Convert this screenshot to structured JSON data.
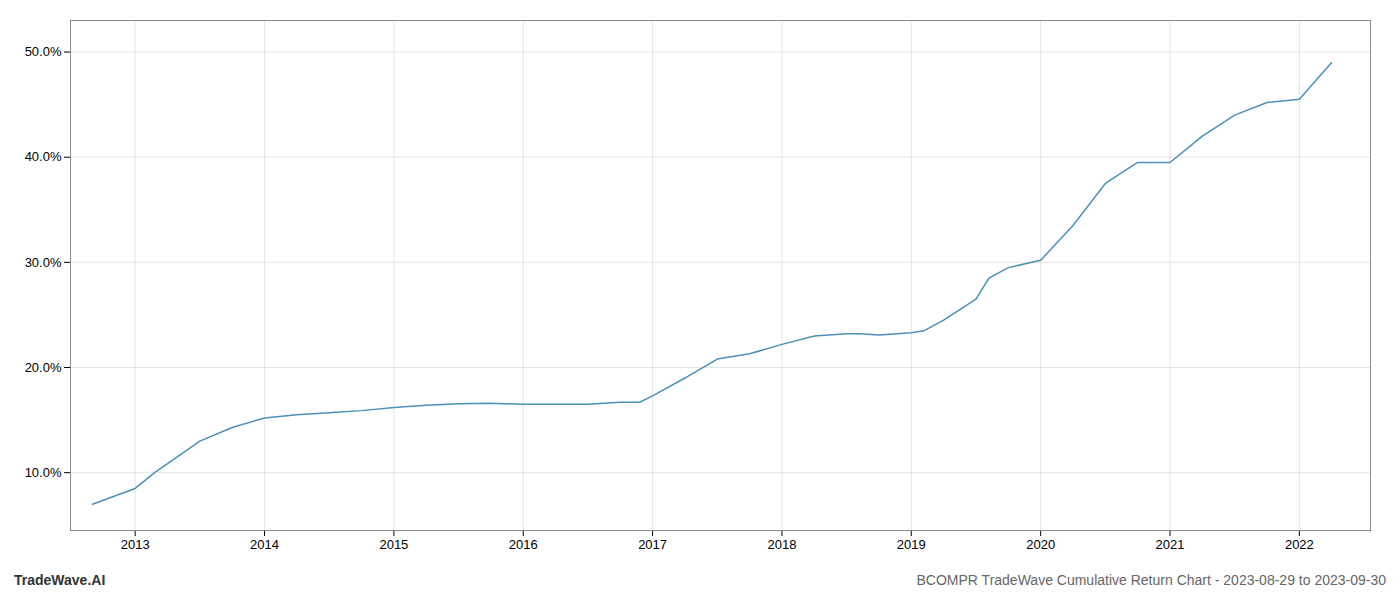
{
  "chart_data": {
    "type": "line",
    "title": "BCOMPR TradeWave Cumulative Return Chart - 2023-08-29 to 2023-09-30",
    "annotations": [
      "TradeWave.AI"
    ],
    "color": "#4a90b8",
    "grid": true,
    "x": [
      2012.67,
      2013.0,
      2013.15,
      2013.5,
      2013.75,
      2014.0,
      2014.25,
      2014.5,
      2014.75,
      2015.0,
      2015.25,
      2015.5,
      2015.75,
      2016.0,
      2016.1,
      2016.25,
      2016.5,
      2016.75,
      2016.9,
      2017.0,
      2017.25,
      2017.5,
      2017.75,
      2018.0,
      2018.25,
      2018.5,
      2018.6,
      2018.75,
      2019.0,
      2019.1,
      2019.25,
      2019.5,
      2019.6,
      2019.75,
      2020.0,
      2020.25,
      2020.5,
      2020.75,
      2021.0,
      2021.25,
      2021.5,
      2021.75,
      2022.0,
      2022.25
    ],
    "values": [
      7.0,
      8.5,
      10.0,
      13.0,
      14.3,
      15.2,
      15.5,
      15.7,
      15.9,
      16.2,
      16.4,
      16.55,
      16.6,
      16.5,
      16.5,
      16.5,
      16.5,
      16.7,
      16.7,
      17.3,
      19.0,
      20.8,
      21.3,
      22.2,
      23.0,
      23.2,
      23.2,
      23.1,
      23.3,
      23.5,
      24.5,
      26.5,
      28.5,
      29.5,
      30.2,
      33.5,
      37.5,
      39.5,
      39.5,
      42.0,
      44.0,
      45.2,
      45.5,
      49.0
    ],
    "xlim": [
      2012.5,
      2022.55
    ],
    "xticks": [
      2013,
      2014,
      2015,
      2016,
      2017,
      2018,
      2019,
      2020,
      2021,
      2022
    ],
    "ylim": [
      4.5,
      53
    ],
    "yticks": [
      {
        "value": 10.0,
        "label": "10.0%"
      },
      {
        "value": 20.0,
        "label": "20.0%"
      },
      {
        "value": 30.0,
        "label": "30.0%"
      },
      {
        "value": 40.0,
        "label": "40.0%"
      },
      {
        "value": 50.0,
        "label": "50.0%"
      }
    ]
  }
}
